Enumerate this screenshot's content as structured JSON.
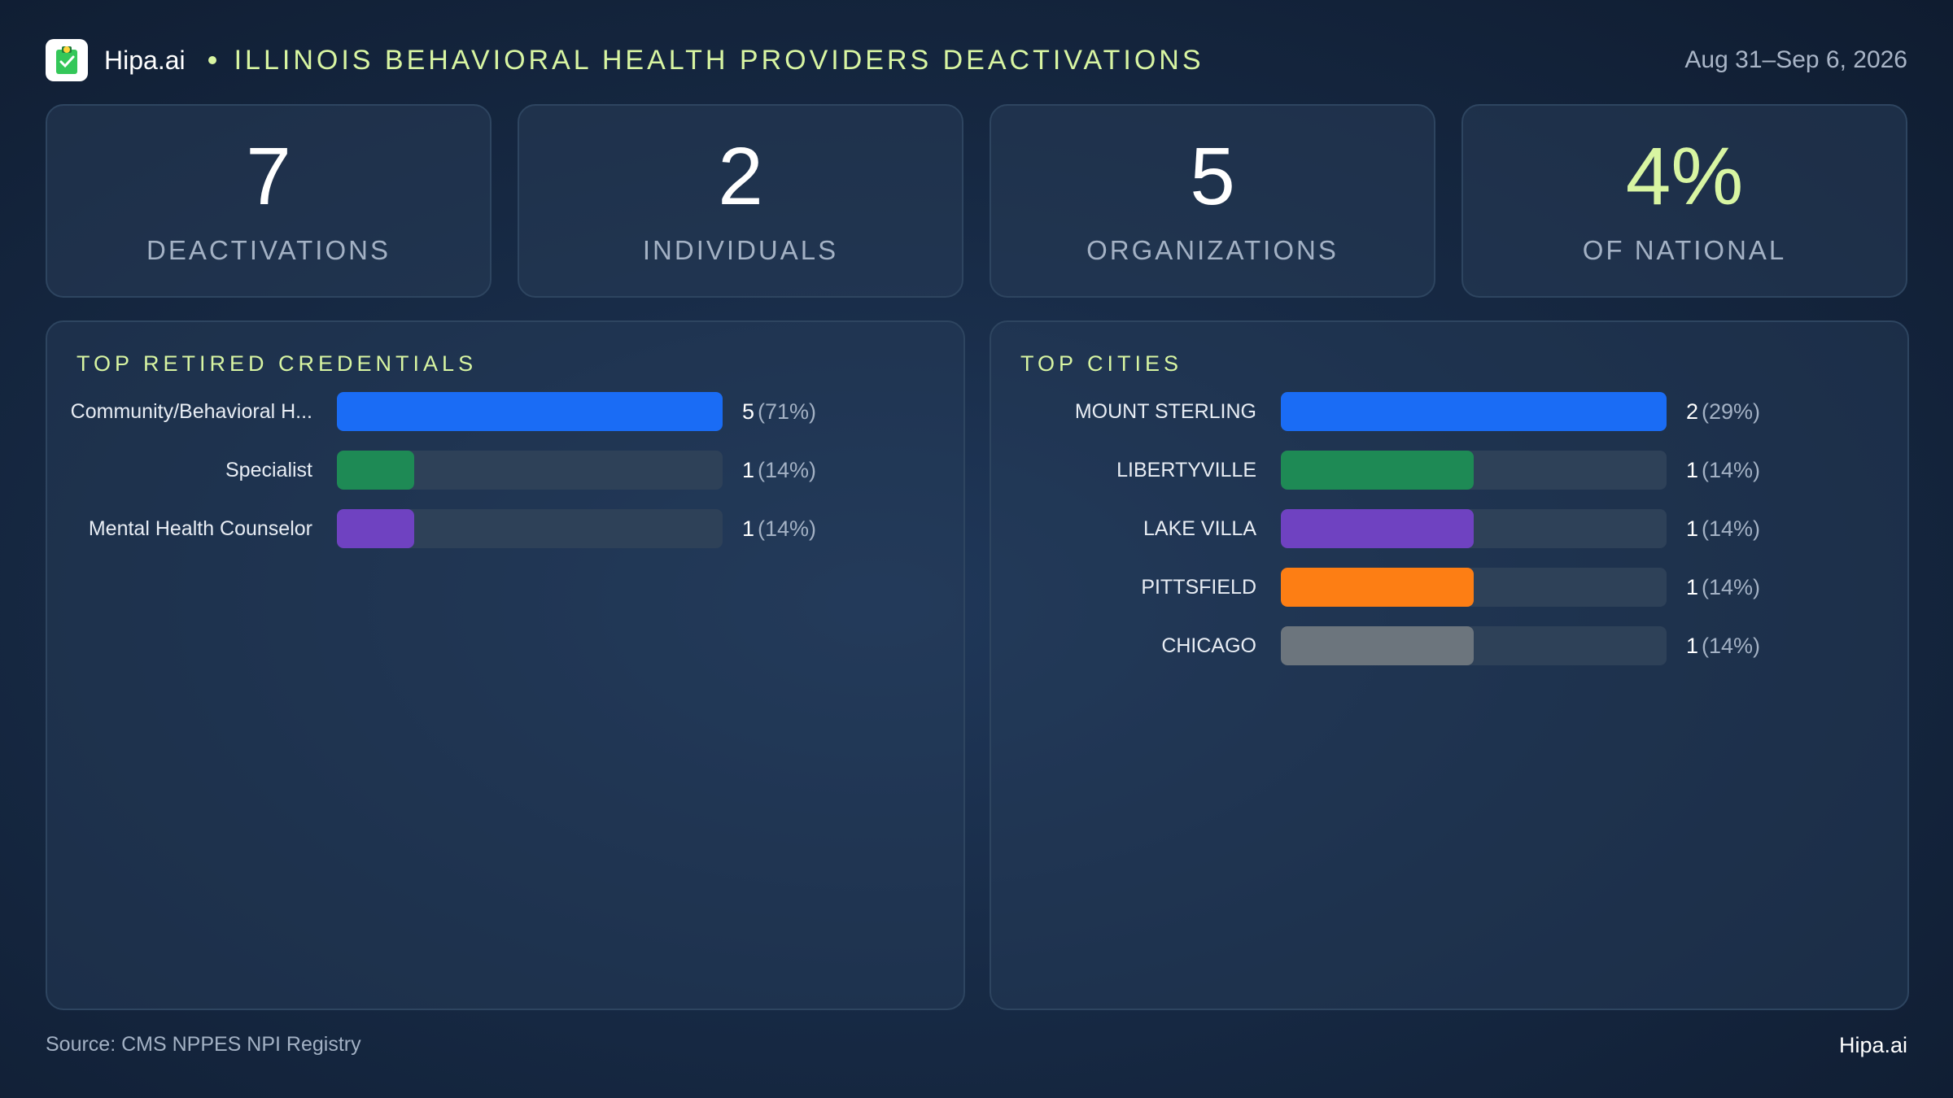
{
  "header": {
    "brand": "Hipa.ai",
    "title": "ILLINOIS BEHAVIORAL HEALTH PROVIDERS DEACTIVATIONS",
    "date_range": "Aug 31–Sep 6, 2026",
    "logo_icon": "clipboard-check-icon"
  },
  "stats": [
    {
      "value": "7",
      "label": "DEACTIVATIONS"
    },
    {
      "value": "2",
      "label": "INDIVIDUALS"
    },
    {
      "value": "5",
      "label": "ORGANIZATIONS"
    },
    {
      "value": "4%",
      "label": "OF NATIONAL"
    }
  ],
  "credentials": {
    "title": "TOP RETIRED CREDENTIALS",
    "items": [
      {
        "label": "Community/Behavioral H...",
        "count": "5",
        "pct": "(71%)"
      },
      {
        "label": "Specialist",
        "count": "1",
        "pct": "(14%)"
      },
      {
        "label": "Mental Health Counselor",
        "count": "1",
        "pct": "(14%)"
      }
    ]
  },
  "cities": {
    "title": "TOP CITIES",
    "items": [
      {
        "label": "MOUNT STERLING",
        "count": "2",
        "pct": "(29%)"
      },
      {
        "label": "LIBERTYVILLE",
        "count": "1",
        "pct": "(14%)"
      },
      {
        "label": "LAKE VILLA",
        "count": "1",
        "pct": "(14%)"
      },
      {
        "label": "PITTSFIELD",
        "count": "1",
        "pct": "(14%)"
      },
      {
        "label": "CHICAGO",
        "count": "1",
        "pct": "(14%)"
      }
    ]
  },
  "chart_data": [
    {
      "type": "bar",
      "title": "TOP RETIRED CREDENTIALS",
      "categories": [
        "Community/Behavioral H...",
        "Specialist",
        "Mental Health Counselor"
      ],
      "values": [
        5,
        1,
        1
      ],
      "percentages": [
        71,
        14,
        14
      ],
      "colors": [
        "#1a6cf5",
        "#1e8a55",
        "#6f42c1"
      ],
      "orientation": "horizontal"
    },
    {
      "type": "bar",
      "title": "TOP CITIES",
      "categories": [
        "MOUNT STERLING",
        "LIBERTYVILLE",
        "LAKE VILLA",
        "PITTSFIELD",
        "CHICAGO"
      ],
      "values": [
        2,
        1,
        1,
        1,
        1
      ],
      "percentages": [
        29,
        14,
        14,
        14,
        14
      ],
      "colors": [
        "#1a6cf5",
        "#1e8a55",
        "#6f42c1",
        "#fd7e14",
        "#6c757d"
      ],
      "orientation": "horizontal"
    }
  ],
  "footer": {
    "source": "Source: CMS NPPES NPI Registry",
    "brand": "Hipa.ai"
  }
}
